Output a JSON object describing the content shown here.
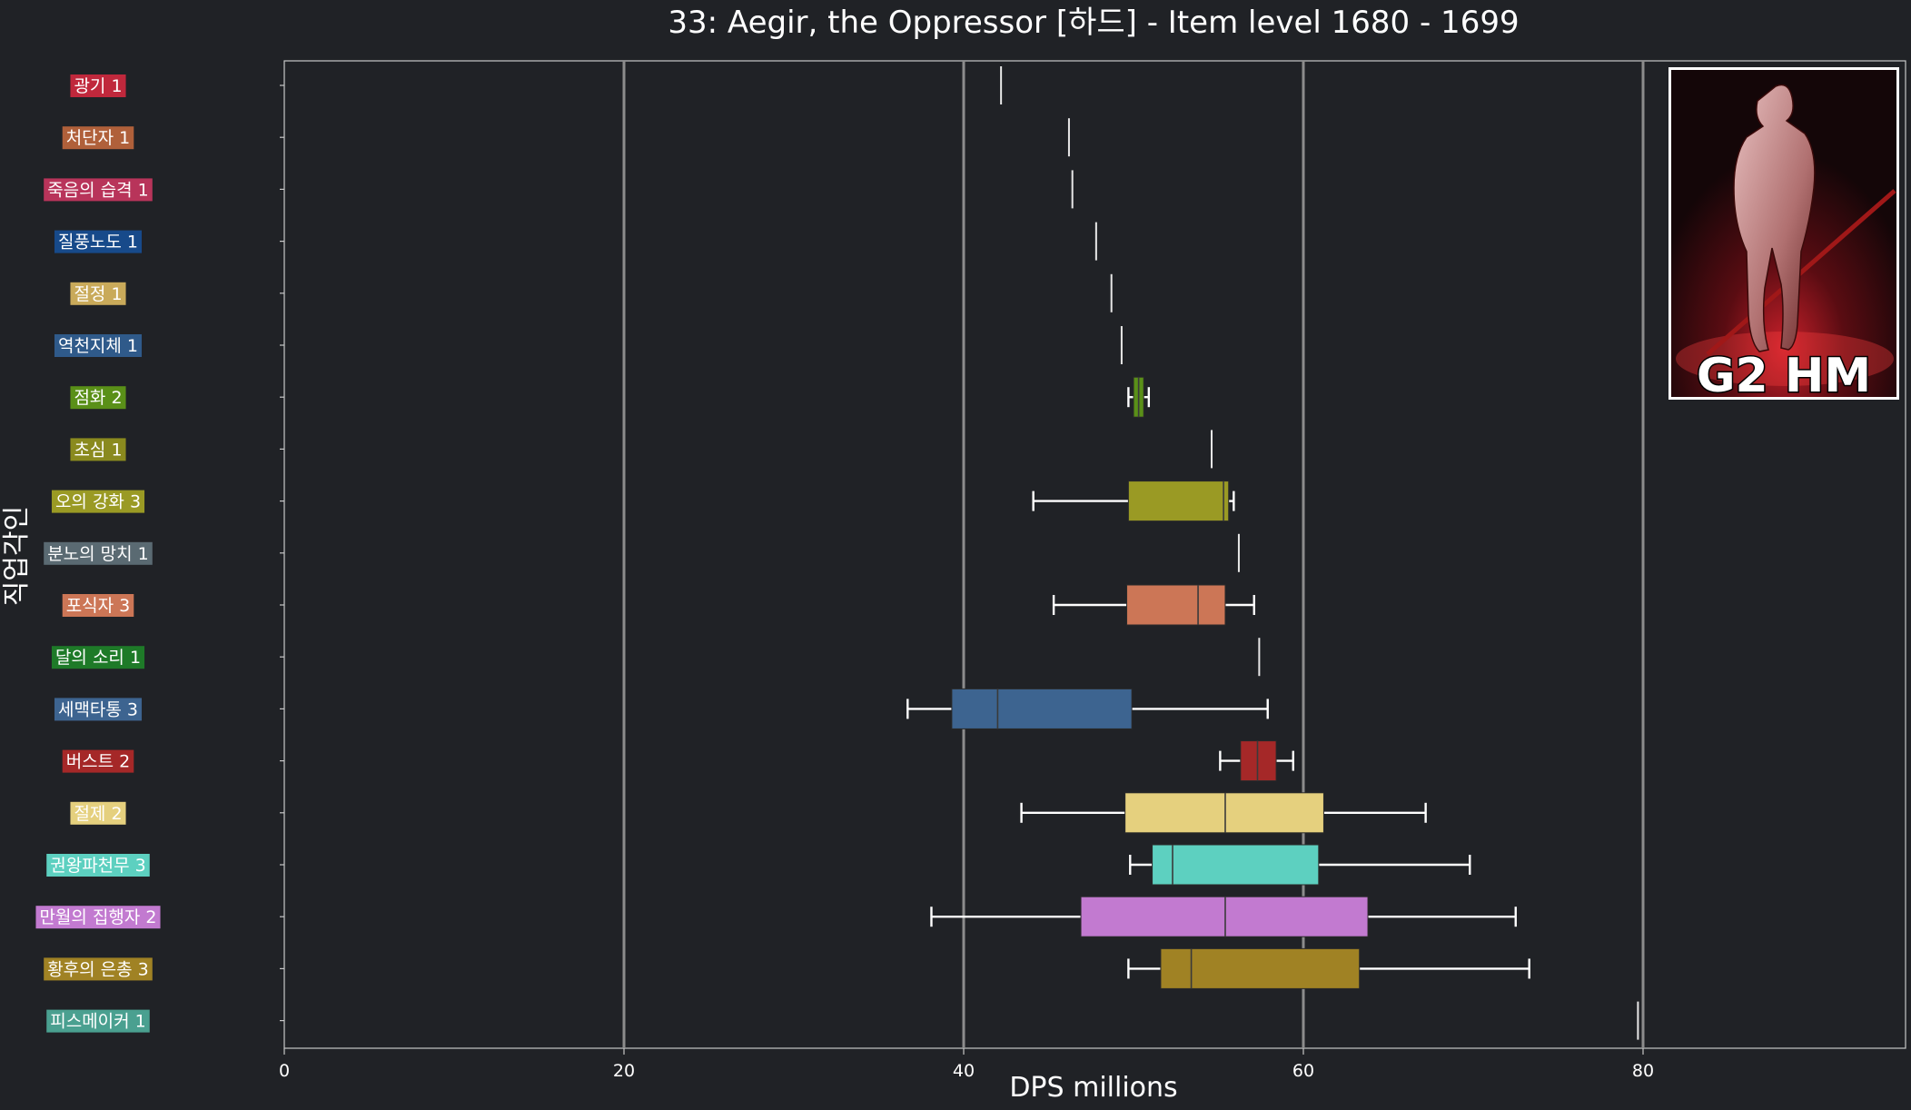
{
  "chart_data": {
    "type": "box",
    "title": "33: Aegir, the Oppressor [하드] - Item level 1680 - 1699",
    "xlabel": "DPS millions",
    "ylabel": "직업각인",
    "xlim": [
      0,
      95
    ],
    "xticks": [
      0,
      20,
      40,
      60,
      80
    ],
    "grid": "vertical",
    "badge": "G2 HM",
    "series": [
      {
        "label": "광기 1",
        "color": "#c0283c",
        "min": 42.2,
        "q1": 42.2,
        "median": 42.2,
        "q3": 42.2,
        "max": 42.2
      },
      {
        "label": "처단자 1",
        "color": "#b0603a",
        "min": 46.2,
        "q1": 46.2,
        "median": 46.2,
        "q3": 46.2,
        "max": 46.2
      },
      {
        "label": "죽음의 습격 1",
        "color": "#b8345a",
        "min": 46.4,
        "q1": 46.4,
        "median": 46.4,
        "q3": 46.4,
        "max": 46.4
      },
      {
        "label": "질풍노도 1",
        "color": "#174a8a",
        "min": 47.8,
        "q1": 47.8,
        "median": 47.8,
        "q3": 47.8,
        "max": 47.8
      },
      {
        "label": "절정 1",
        "color": "#c9aa5a",
        "min": 48.7,
        "q1": 48.7,
        "median": 48.7,
        "q3": 48.7,
        "max": 48.7
      },
      {
        "label": "역천지체 1",
        "color": "#2f5a8a",
        "min": 49.3,
        "q1": 49.3,
        "median": 49.3,
        "q3": 49.3,
        "max": 49.3
      },
      {
        "label": "점화 2",
        "color": "#5a9018",
        "min": 49.7,
        "q1": 50.0,
        "median": 50.3,
        "q3": 50.6,
        "max": 50.9
      },
      {
        "label": "초심 1",
        "color": "#8a8a1e",
        "min": 54.6,
        "q1": 54.6,
        "median": 54.6,
        "q3": 54.6,
        "max": 54.6
      },
      {
        "label": "오의 강화 3",
        "color": "#9a9a24",
        "min": 44.1,
        "q1": 49.7,
        "median": 55.3,
        "q3": 55.6,
        "max": 55.9
      },
      {
        "label": "분노의 망치 1",
        "color": "#5a6a72",
        "min": 56.2,
        "q1": 56.2,
        "median": 56.2,
        "q3": 56.2,
        "max": 56.2
      },
      {
        "label": "포식자 3",
        "color": "#cc7656",
        "min": 45.3,
        "q1": 49.6,
        "median": 53.8,
        "q3": 55.4,
        "max": 57.1
      },
      {
        "label": "달의 소리 1",
        "color": "#1e7a28",
        "min": 57.4,
        "q1": 57.4,
        "median": 57.4,
        "q3": 57.4,
        "max": 57.4
      },
      {
        "label": "세맥타통 3",
        "color": "#3d6490",
        "min": 36.7,
        "q1": 39.3,
        "median": 42.0,
        "q3": 49.9,
        "max": 57.9
      },
      {
        "label": "버스트 2",
        "color": "#a52828",
        "min": 55.1,
        "q1": 56.3,
        "median": 57.3,
        "q3": 58.4,
        "max": 59.4
      },
      {
        "label": "절제 2",
        "color": "#e5d07e",
        "min": 43.4,
        "q1": 49.5,
        "median": 55.4,
        "q3": 61.2,
        "max": 67.2
      },
      {
        "label": "권왕파천무 3",
        "color": "#5dd0c0",
        "min": 49.8,
        "q1": 51.1,
        "median": 52.3,
        "q3": 60.9,
        "max": 69.8
      },
      {
        "label": "만월의 집행자 2",
        "color": "#c27ad0",
        "min": 38.1,
        "q1": 46.9,
        "median": 55.4,
        "q3": 63.8,
        "max": 72.5
      },
      {
        "label": "황후의 은총 3",
        "color": "#a08224",
        "min": 49.7,
        "q1": 51.6,
        "median": 53.4,
        "q3": 63.3,
        "max": 73.3
      },
      {
        "label": "피스메이커 1",
        "color": "#4aa090",
        "min": 79.7,
        "q1": 79.7,
        "median": 79.7,
        "q3": 79.7,
        "max": 79.7
      }
    ]
  }
}
